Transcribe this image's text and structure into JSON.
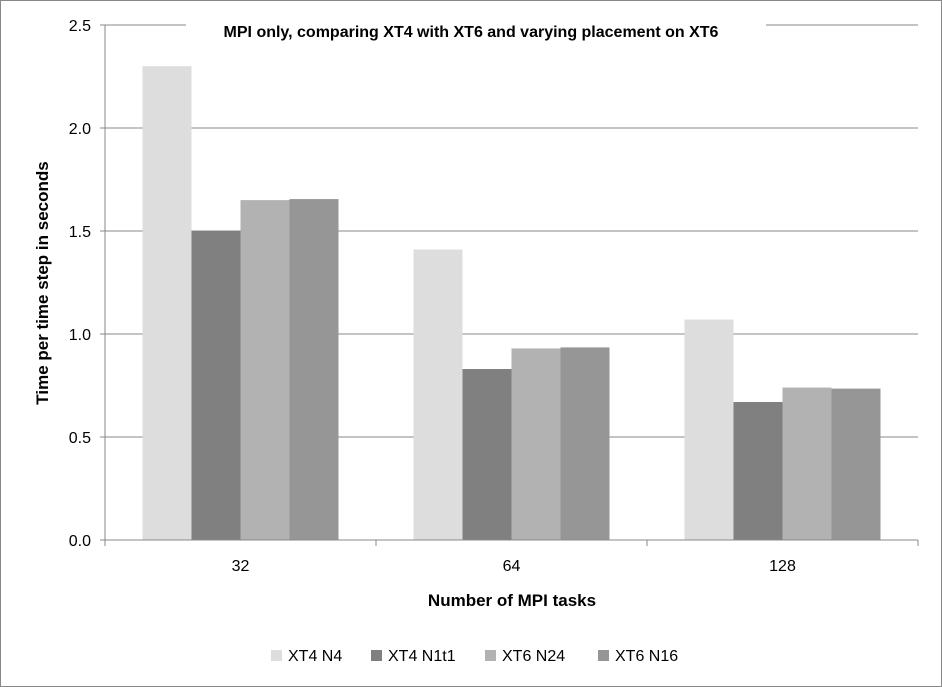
{
  "chart_data": {
    "type": "bar",
    "title": "MPI only, comparing XT4 with XT6 and varying placement on XT6",
    "xlabel": "Number of MPI tasks",
    "ylabel": "Time per time step in seconds",
    "categories": [
      "32",
      "64",
      "128"
    ],
    "ylim": [
      0,
      2.5
    ],
    "yticks": [
      "0.0",
      "0.5",
      "1.0",
      "1.5",
      "2.0",
      "2.5"
    ],
    "grid": true,
    "legend_position": "bottom",
    "series": [
      {
        "name": "XT4 N4",
        "color": "#dddddd",
        "values": [
          2.3,
          1.41,
          1.07
        ]
      },
      {
        "name": "XT4 N1t1",
        "color": "#808080",
        "values": [
          1.5,
          0.83,
          0.67
        ]
      },
      {
        "name": "XT6 N24",
        "color": "#b2b2b2",
        "values": [
          1.65,
          0.93,
          0.74
        ]
      },
      {
        "name": "XT6 N16",
        "color": "#969696",
        "values": [
          1.655,
          0.935,
          0.735
        ]
      }
    ]
  }
}
